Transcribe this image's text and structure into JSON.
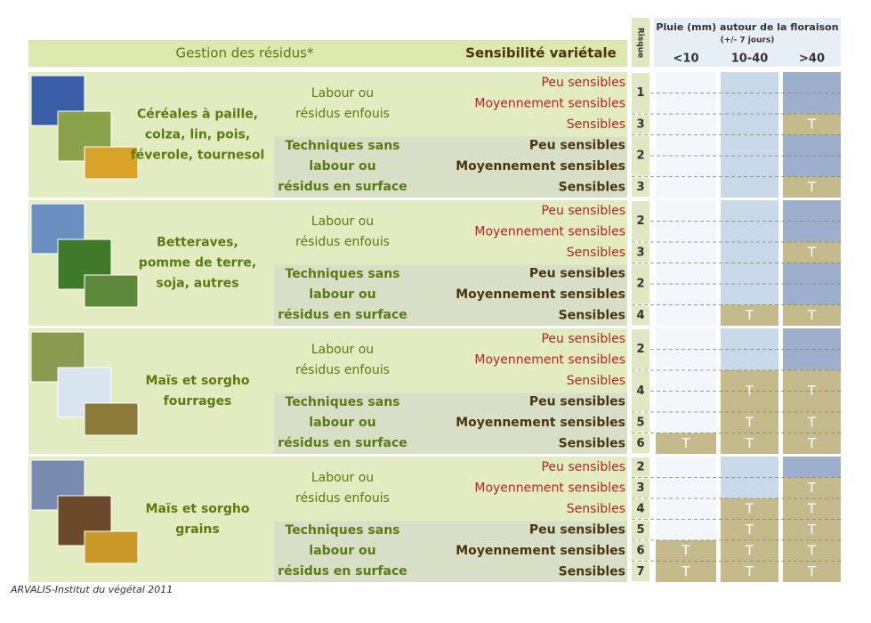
{
  "header": {
    "residue_management": "Gestion des résidus*",
    "varietal_sensitivity": "Sensibilité variétale",
    "risk": "Risque",
    "rain": "Pluie (mm) autour de la floraison",
    "rain_note": "(+/- 7 jours)",
    "rain_columns": [
      "<10",
      "10-40",
      ">40"
    ]
  },
  "groups": [
    {
      "crop": [
        "Céréales à paille,",
        "colza, lin, pois,",
        "féverole, tournesol"
      ],
      "tillage": [
        {
          "label": [
            "Labour ou",
            "résidus enfouis"
          ],
          "rows": [
            {
              "sensitivity": "Peu sensibles",
              "rain": [
                null,
                null,
                null
              ]
            },
            {
              "sensitivity": "Moyennement sensibles",
              "rain": [
                null,
                null,
                null
              ]
            },
            {
              "sensitivity": "Sensibles",
              "rain": [
                null,
                null,
                "T"
              ]
            }
          ]
        },
        {
          "label": [
            "Techniques sans",
            "labour   ou",
            "résidus en surface"
          ],
          "rows": [
            {
              "sensitivity": "Peu sensibles",
              "rain": [
                null,
                null,
                null
              ]
            },
            {
              "sensitivity": "Moyennement sensibles",
              "rain": [
                null,
                null,
                null
              ]
            },
            {
              "sensitivity": "Sensibles",
              "rain": [
                null,
                null,
                "T"
              ]
            }
          ]
        }
      ],
      "risks": [
        {
          "value": 1,
          "span": 2
        },
        {
          "value": 3,
          "span": 1
        },
        {
          "value": 2,
          "span": 2
        },
        {
          "value": 3,
          "span": 1
        }
      ]
    },
    {
      "crop": [
        "Betteraves,",
        "pomme de terre,",
        "soja, autres"
      ],
      "tillage": [
        {
          "label": [
            "Labour ou",
            "résidus enfouis"
          ],
          "rows": [
            {
              "sensitivity": "Peu sensibles",
              "rain": [
                null,
                null,
                null
              ]
            },
            {
              "sensitivity": "Moyennement sensibles",
              "rain": [
                null,
                null,
                null
              ]
            },
            {
              "sensitivity": "Sensibles",
              "rain": [
                null,
                null,
                "T"
              ]
            }
          ]
        },
        {
          "label": [
            "Techniques sans",
            "labour   ou",
            "résidus en surface"
          ],
          "rows": [
            {
              "sensitivity": "Peu sensibles",
              "rain": [
                null,
                null,
                null
              ]
            },
            {
              "sensitivity": "Moyennement sensibles",
              "rain": [
                null,
                null,
                null
              ]
            },
            {
              "sensitivity": "Sensibles",
              "rain": [
                null,
                "T",
                "T"
              ]
            }
          ]
        }
      ],
      "risks": [
        {
          "value": 2,
          "span": 2
        },
        {
          "value": 3,
          "span": 1
        },
        {
          "value": 2,
          "span": 2
        },
        {
          "value": 4,
          "span": 1
        }
      ]
    },
    {
      "crop": [
        "Maïs et sorgho",
        "fourrages"
      ],
      "tillage": [
        {
          "label": [
            "Labour ou",
            "résidus enfouis"
          ],
          "rows": [
            {
              "sensitivity": "Peu sensibles",
              "rain": [
                null,
                null,
                null
              ]
            },
            {
              "sensitivity": "Moyennement sensibles",
              "rain": [
                null,
                null,
                null
              ]
            },
            {
              "sensitivity": "Sensibles",
              "rain": [
                null,
                {
                  "text": "T",
                  "span": 2
                },
                {
                  "text": "T",
                  "span": 2
                }
              ]
            }
          ]
        },
        {
          "label": [
            "Techniques sans",
            "labour   ou",
            "résidus en surface"
          ],
          "rows": [
            {
              "sensitivity": "Peu sensibles",
              "rain": [
                null,
                null,
                null
              ]
            },
            {
              "sensitivity": "Moyennement sensibles",
              "rain": [
                null,
                "T",
                "T"
              ]
            },
            {
              "sensitivity": "Sensibles",
              "rain": [
                "T",
                "T",
                "T"
              ]
            }
          ]
        }
      ],
      "risks": [
        {
          "value": 2,
          "span": 2
        },
        {
          "value": 4,
          "span": 2
        },
        {
          "value": 5,
          "span": 1
        },
        {
          "value": 6,
          "span": 1
        }
      ]
    },
    {
      "crop": [
        "Maïs et sorgho",
        "grains"
      ],
      "tillage": [
        {
          "label": [
            "Labour ou",
            "résidus enfouis"
          ],
          "rows": [
            {
              "sensitivity": "Peu sensibles",
              "rain": [
                null,
                null,
                null
              ]
            },
            {
              "sensitivity": "Moyennement sensibles",
              "rain": [
                null,
                null,
                "T"
              ]
            },
            {
              "sensitivity": "Sensibles",
              "rain": [
                null,
                "T",
                "T"
              ]
            }
          ]
        },
        {
          "label": [
            "Techniques sans",
            "labour   ou",
            "résidus en surface"
          ],
          "rows": [
            {
              "sensitivity": "Peu sensibles",
              "rain": [
                null,
                "T",
                "T"
              ]
            },
            {
              "sensitivity": "Moyennement sensibles",
              "rain": [
                "T",
                "T",
                "T"
              ]
            },
            {
              "sensitivity": "Sensibles",
              "rain": [
                "T",
                "T",
                "T"
              ]
            }
          ]
        }
      ],
      "risks": [
        {
          "value": 2,
          "span": 1
        },
        {
          "value": 3,
          "span": 1
        },
        {
          "value": 4,
          "span": 1
        },
        {
          "value": 5,
          "span": 1
        },
        {
          "value": 6,
          "span": 1
        },
        {
          "value": 7,
          "span": 1
        }
      ]
    }
  ],
  "footer": "ARVALIS-Institut du végétal 2011"
}
